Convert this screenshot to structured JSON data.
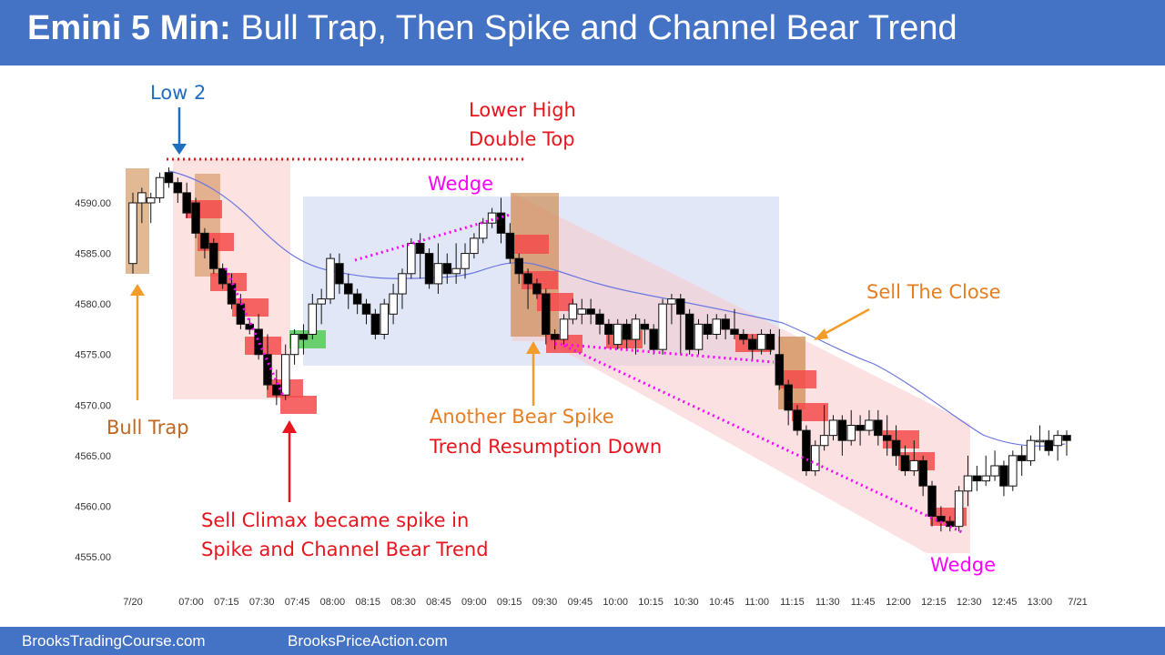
{
  "title": {
    "bold": "Emini 5 Min:",
    "rest": "Bull Trap, Then Spike and Channel Bear Trend"
  },
  "footer": {
    "left": "BrooksTradingCourse.com",
    "right": "BrooksPriceAction.com"
  },
  "annotations": {
    "low2": "Low 2",
    "lower_high_1": "Lower High",
    "lower_high_2": "Double Top",
    "wedge_top": "Wedge",
    "bull_trap": "Bull Trap",
    "sell_the_close": "Sell The Close",
    "another_1": "Another Bear Spike",
    "another_2": "Trend Resumption Down",
    "sell_climax_1": "Sell Climax became spike in",
    "sell_climax_2": "Spike and Channel Bear Trend",
    "wedge_bottom": "Wedge"
  },
  "colors": {
    "brand": "#4472c4",
    "red_text": "#e8141e",
    "orange_text": "#e67e22",
    "blue_text": "#1f6fc0",
    "magenta": "#ff00ff",
    "bull_trap_text": "#c0661f",
    "ema": "#6b77e0"
  },
  "chart_data": {
    "type": "candlestick",
    "title": "Emini 5 Min: Bull Trap, Then Spike and Channel Bear Trend",
    "ylim": [
      4552,
      4593
    ],
    "yticks": [
      "4590.00",
      "4585.00",
      "4580.00",
      "4575.00",
      "4570.00",
      "4565.00",
      "4560.00",
      "4555.00"
    ],
    "xticks": [
      "7/20",
      "07:00",
      "07:15",
      "07:30",
      "07:45",
      "08:00",
      "08:15",
      "08:30",
      "08:45",
      "09:00",
      "09:15",
      "09:30",
      "09:45",
      "10:00",
      "10:15",
      "10:30",
      "10:45",
      "11:00",
      "11:15",
      "11:30",
      "11:45",
      "12:00",
      "12:15",
      "12:30",
      "12:45",
      "13:00",
      "7/21"
    ],
    "bars": [
      [
        4584,
        4590,
        4583,
        4591
      ],
      [
        4590,
        4591,
        4588,
        4591.5
      ],
      [
        4590,
        4590.5,
        4588,
        4591
      ],
      [
        4590.5,
        4592.5,
        4590,
        4593
      ],
      [
        4593,
        4592,
        4591.5,
        4593.5
      ],
      [
        4592,
        4591,
        4590,
        4592.5
      ],
      [
        4591,
        4589,
        4588.5,
        4592
      ],
      [
        4590,
        4587,
        4586.5,
        4590.5
      ],
      [
        4587,
        4585.5,
        4584.5,
        4587.5
      ],
      [
        4586,
        4583.5,
        4583,
        4586.5
      ],
      [
        4583.5,
        4582,
        4581.5,
        4584
      ],
      [
        4582,
        4580,
        4579.5,
        4583
      ],
      [
        4580,
        4578,
        4577.5,
        4581
      ],
      [
        4578,
        4577.5,
        4577,
        4578.5
      ],
      [
        4577.5,
        4575,
        4574.5,
        4579
      ],
      [
        4575,
        4572,
        4571.5,
        4577
      ],
      [
        4572,
        4571,
        4570,
        4573.5
      ],
      [
        4571,
        4575,
        4570.5,
        4576
      ],
      [
        4575,
        4577,
        4574,
        4577.5
      ],
      [
        4577,
        4576.5,
        4575,
        4578
      ],
      [
        4577,
        4580,
        4576.5,
        4581
      ],
      [
        4580,
        4580.5,
        4578,
        4581.5
      ],
      [
        4580.5,
        4584.5,
        4580,
        4585
      ],
      [
        4584,
        4582,
        4581,
        4585
      ],
      [
        4582,
        4581,
        4579.5,
        4583
      ],
      [
        4581,
        4580,
        4579,
        4581.5
      ],
      [
        4580,
        4579,
        4578,
        4580.5
      ],
      [
        4579,
        4577,
        4576.5,
        4579.5
      ],
      [
        4577,
        4580,
        4576.5,
        4580.5
      ],
      [
        4579,
        4581,
        4578,
        4582
      ],
      [
        4581,
        4583,
        4579.5,
        4583.5
      ],
      [
        4583,
        4586,
        4582.5,
        4586.5
      ],
      [
        4586,
        4585,
        4582.5,
        4587
      ],
      [
        4585,
        4582,
        4581.5,
        4585.5
      ],
      [
        4582,
        4584,
        4581,
        4586
      ],
      [
        4584,
        4583,
        4582,
        4585
      ],
      [
        4583,
        4583.5,
        4582,
        4586
      ],
      [
        4583.5,
        4585,
        4582.5,
        4586
      ],
      [
        4585,
        4586.5,
        4584.5,
        4587
      ],
      [
        4586.5,
        4588,
        4586,
        4588.5
      ],
      [
        4588,
        4589,
        4587.5,
        4589.5
      ],
      [
        4589,
        4587,
        4586,
        4590.5
      ],
      [
        4587,
        4584.5,
        4584,
        4588
      ],
      [
        4584.5,
        4583,
        4582,
        4585
      ],
      [
        4583,
        4582,
        4579.5,
        4583.5
      ],
      [
        4582,
        4581,
        4580.5,
        4582.5
      ],
      [
        4581,
        4577,
        4576,
        4581.5
      ],
      [
        4577,
        4576.5,
        4575.5,
        4577.5
      ],
      [
        4576.5,
        4578.5,
        4576,
        4579
      ],
      [
        4578.5,
        4580,
        4578,
        4580.5
      ],
      [
        4579,
        4579.5,
        4578,
        4580.5
      ],
      [
        4579.5,
        4579,
        4578,
        4580.5
      ],
      [
        4579,
        4578,
        4577,
        4579.5
      ],
      [
        4578,
        4577,
        4576,
        4578.5
      ],
      [
        4576,
        4578,
        4575.5,
        4578.5
      ],
      [
        4578,
        4576.5,
        4575.5,
        4578.5
      ],
      [
        4576.5,
        4578.5,
        4575,
        4579
      ],
      [
        4578,
        4577.5,
        4576,
        4578.5
      ],
      [
        4577.5,
        4575.5,
        4575,
        4578
      ],
      [
        4575.5,
        4580,
        4575,
        4580.5
      ],
      [
        4580,
        4580.5,
        4578,
        4581
      ],
      [
        4580.5,
        4579,
        4575,
        4581
      ],
      [
        4579,
        4575.5,
        4575,
        4579.5
      ],
      [
        4575.5,
        4578,
        4575,
        4578.5
      ],
      [
        4578,
        4577,
        4576.5,
        4579
      ],
      [
        4577,
        4578.5,
        4576.5,
        4579
      ],
      [
        4578.5,
        4577.5,
        4576.5,
        4579
      ],
      [
        4577.5,
        4577,
        4576.5,
        4579.5
      ],
      [
        4577,
        4576.5,
        4576,
        4577.5
      ],
      [
        4576.5,
        4575.5,
        4574.5,
        4577
      ],
      [
        4575.5,
        4577,
        4575,
        4577.5
      ],
      [
        4577,
        4575.5,
        4575,
        4577.5
      ],
      [
        4575,
        4572,
        4571.5,
        4577.5
      ],
      [
        4572,
        4569.5,
        4568,
        4572.5
      ],
      [
        4569.5,
        4567.5,
        4567,
        4570
      ],
      [
        4567.5,
        4563.5,
        4563,
        4568
      ],
      [
        4563.5,
        4566,
        4563,
        4566.5
      ],
      [
        4566,
        4567,
        4565.5,
        4570
      ],
      [
        4567,
        4568.5,
        4566.5,
        4569
      ],
      [
        4568.5,
        4566.5,
        4565,
        4569
      ],
      [
        4566.5,
        4568,
        4566,
        4569.5
      ],
      [
        4568,
        4567.5,
        4566,
        4569
      ],
      [
        4567.5,
        4568.5,
        4567,
        4569.5
      ],
      [
        4568.5,
        4567,
        4566,
        4569.5
      ],
      [
        4567,
        4566.5,
        4565,
        4569
      ],
      [
        4566.5,
        4565,
        4564,
        4568
      ],
      [
        4565,
        4563.5,
        4563,
        4566
      ],
      [
        4563.5,
        4564.5,
        4563,
        4566.5
      ],
      [
        4564.5,
        4562,
        4561,
        4565
      ],
      [
        4562,
        4559,
        4558,
        4562.5
      ],
      [
        4559,
        4558.5,
        4557.5,
        4560
      ],
      [
        4558.5,
        4558,
        4557.5,
        4559
      ],
      [
        4558,
        4561.5,
        4557.5,
        4562
      ],
      [
        4561.5,
        4563,
        4560,
        4565
      ],
      [
        4563,
        4562.5,
        4561.5,
        4564
      ],
      [
        4562.5,
        4563,
        4562,
        4565
      ],
      [
        4563,
        4564,
        4562.5,
        4565.5
      ],
      [
        4564,
        4562,
        4561,
        4564.5
      ],
      [
        4562,
        4565,
        4561.5,
        4565.5
      ],
      [
        4565,
        4564.5,
        4563,
        4566
      ],
      [
        4564.5,
        4566.5,
        4564,
        4567
      ],
      [
        4566.5,
        4566.5,
        4565.5,
        4568
      ],
      [
        4566.5,
        4565.5,
        4565,
        4567.5
      ],
      [
        4566,
        4567,
        4564.5,
        4567.5
      ],
      [
        4567,
        4566.5,
        4565,
        4567.5
      ]
    ]
  }
}
